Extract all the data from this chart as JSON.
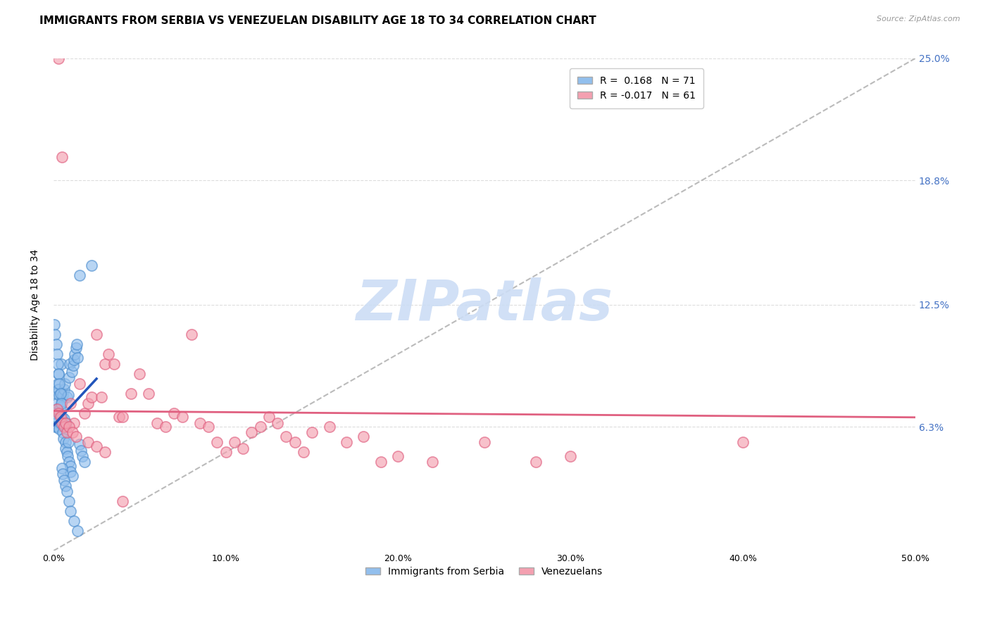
{
  "title": "IMMIGRANTS FROM SERBIA VS VENEZUELAN DISABILITY AGE 18 TO 34 CORRELATION CHART",
  "source": "Source: ZipAtlas.com",
  "ylabel": "Disability Age 18 to 34",
  "xlim": [
    0,
    50
  ],
  "ylim": [
    0,
    25
  ],
  "xtick_labels": [
    "0.0%",
    "10.0%",
    "20.0%",
    "30.0%",
    "40.0%",
    "50.0%"
  ],
  "xtick_vals": [
    0,
    10,
    20,
    30,
    40,
    50
  ],
  "ytick_labels": [
    "6.3%",
    "12.5%",
    "18.8%",
    "25.0%"
  ],
  "ytick_vals": [
    6.3,
    12.5,
    18.8,
    25.0
  ],
  "serbia_color": "#92BFED",
  "serbia_edge_color": "#5090D0",
  "venezuela_color": "#F4A0B0",
  "venezuela_edge_color": "#E06080",
  "serbia_R": 0.168,
  "serbia_N": 71,
  "venezuela_R": -0.017,
  "venezuela_N": 61,
  "serbia_trend_color": "#2255BB",
  "venezuela_trend_color": "#E06080",
  "ref_line_color": "#aaaaaa",
  "background_color": "#ffffff",
  "grid_color": "#dddddd",
  "watermark_color": "#ccddf5",
  "title_fontsize": 11,
  "axis_label_fontsize": 10,
  "tick_fontsize": 9,
  "legend_fontsize": 10,
  "serbia_scatter_x": [
    0.05,
    0.08,
    0.1,
    0.12,
    0.15,
    0.18,
    0.2,
    0.22,
    0.25,
    0.28,
    0.3,
    0.32,
    0.35,
    0.38,
    0.4,
    0.42,
    0.45,
    0.48,
    0.5,
    0.52,
    0.55,
    0.58,
    0.6,
    0.62,
    0.65,
    0.68,
    0.7,
    0.72,
    0.75,
    0.78,
    0.8,
    0.82,
    0.85,
    0.88,
    0.9,
    0.92,
    0.95,
    0.98,
    1.0,
    1.05,
    1.1,
    1.15,
    1.2,
    1.25,
    1.3,
    1.35,
    1.4,
    1.5,
    1.6,
    1.7,
    1.8,
    0.05,
    0.1,
    0.15,
    0.2,
    0.25,
    0.3,
    0.35,
    0.4,
    0.45,
    0.5,
    0.55,
    0.6,
    0.7,
    0.8,
    0.9,
    1.0,
    1.2,
    1.4,
    2.2,
    1.5
  ],
  "serbia_scatter_y": [
    6.5,
    7.0,
    6.3,
    6.8,
    7.2,
    8.0,
    6.3,
    7.5,
    8.5,
    9.0,
    8.2,
    7.9,
    6.2,
    7.0,
    7.3,
    6.5,
    9.5,
    6.8,
    7.6,
    7.9,
    6.0,
    5.7,
    6.7,
    8.2,
    8.5,
    6.3,
    5.5,
    5.2,
    6.5,
    5.0,
    7.8,
    4.8,
    5.5,
    7.9,
    8.8,
    4.5,
    9.5,
    4.3,
    4.0,
    9.1,
    3.8,
    9.4,
    9.7,
    10.0,
    10.3,
    10.5,
    9.8,
    5.4,
    5.1,
    4.8,
    4.5,
    11.5,
    11.0,
    10.5,
    10.0,
    9.5,
    9.0,
    8.5,
    8.0,
    7.5,
    4.2,
    3.9,
    3.6,
    3.3,
    3.0,
    2.5,
    2.0,
    1.5,
    1.0,
    14.5,
    14.0
  ],
  "venezuela_scatter_x": [
    0.2,
    0.3,
    0.4,
    0.5,
    0.6,
    0.8,
    1.0,
    1.2,
    1.5,
    1.8,
    2.0,
    2.2,
    2.5,
    2.8,
    3.0,
    3.2,
    3.5,
    3.8,
    4.0,
    4.5,
    5.0,
    5.5,
    6.0,
    6.5,
    7.0,
    7.5,
    8.0,
    8.5,
    9.0,
    9.5,
    10.0,
    10.5,
    11.0,
    11.5,
    12.0,
    12.5,
    13.0,
    13.5,
    14.0,
    14.5,
    15.0,
    16.0,
    17.0,
    18.0,
    19.0,
    20.0,
    22.0,
    25.0,
    28.0,
    30.0,
    0.3,
    0.5,
    0.7,
    0.9,
    1.1,
    1.3,
    2.0,
    2.5,
    3.0,
    4.0,
    40.0
  ],
  "venezuela_scatter_y": [
    7.2,
    7.0,
    6.8,
    6.5,
    6.3,
    6.0,
    7.5,
    6.5,
    8.5,
    7.0,
    7.5,
    7.8,
    11.0,
    7.8,
    9.5,
    10.0,
    9.5,
    6.8,
    6.8,
    8.0,
    9.0,
    8.0,
    6.5,
    6.3,
    7.0,
    6.8,
    11.0,
    6.5,
    6.3,
    5.5,
    5.0,
    5.5,
    5.2,
    6.0,
    6.3,
    6.8,
    6.5,
    5.8,
    5.5,
    5.0,
    6.0,
    6.3,
    5.5,
    5.8,
    4.5,
    4.8,
    4.5,
    5.5,
    4.5,
    4.8,
    25.0,
    20.0,
    6.5,
    6.3,
    6.0,
    5.8,
    5.5,
    5.3,
    5.0,
    2.5,
    5.5
  ]
}
